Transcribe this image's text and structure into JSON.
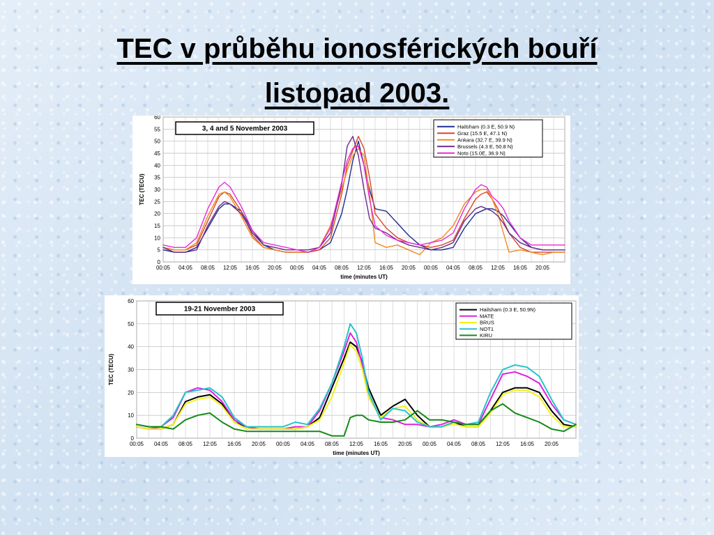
{
  "slide": {
    "title_line1": "TEC v průběhu ionosférických bouří",
    "title_line2": "listopad 2003."
  },
  "chart_data": [
    {
      "type": "line",
      "title": "3, 4 and 5 November 2003",
      "xlabel": "time (minutes UT)",
      "ylabel": "TEC (TECU)",
      "ylim": [
        0,
        60
      ],
      "yticks": [
        0,
        5,
        10,
        15,
        20,
        25,
        30,
        35,
        40,
        45,
        50,
        55,
        60
      ],
      "xlim": [
        0,
        72
      ],
      "xticks": [
        "00:05",
        "04:05",
        "08:05",
        "12:05",
        "16:05",
        "20:05",
        "00:05",
        "04:05",
        "08:05",
        "12:05",
        "16:05",
        "20:05",
        "00:05",
        "04:05",
        "08:05",
        "12:05",
        "16:05",
        "20:05"
      ],
      "grid": true,
      "legend_position": "top-right",
      "x_hours": [
        0,
        2,
        4,
        6,
        8,
        10,
        11,
        12,
        14,
        16,
        18,
        20,
        22,
        24,
        26,
        28,
        30,
        32,
        33,
        34,
        35,
        36,
        37,
        38,
        40,
        42,
        44,
        46,
        48,
        50,
        52,
        54,
        56,
        57,
        58,
        59,
        60,
        61,
        62,
        64,
        66,
        68,
        70,
        72
      ],
      "series": [
        {
          "name": "Hailsham (0.3 E, 50.9 N)",
          "color": "#1c2e8c",
          "values": [
            5,
            4,
            4,
            6,
            14,
            22,
            24,
            24,
            21,
            13,
            7,
            5,
            4,
            4,
            4,
            5,
            8,
            20,
            30,
            42,
            50,
            40,
            30,
            22,
            21,
            16,
            11,
            7,
            5,
            5,
            6,
            14,
            20,
            21,
            22,
            22,
            21,
            19,
            16,
            10,
            6,
            5,
            5,
            5
          ]
        },
        {
          "name": "Graz (15.5 E, 47.1 N)",
          "color": "#d9452b",
          "values": [
            6,
            5,
            5,
            7,
            17,
            27,
            29,
            28,
            21,
            11,
            6,
            5,
            4,
            4,
            4,
            5,
            10,
            28,
            40,
            46,
            52,
            47,
            35,
            20,
            14,
            10,
            8,
            7,
            6,
            7,
            9,
            18,
            26,
            28,
            29,
            26,
            22,
            17,
            12,
            6,
            4,
            4,
            4,
            4
          ]
        },
        {
          "name": "Ankara (32.7 E, 39.9 N)",
          "color": "#f08a1c",
          "values": [
            6,
            5,
            5,
            8,
            19,
            28,
            29,
            27,
            19,
            10,
            6,
            5,
            4,
            4,
            4,
            6,
            15,
            30,
            38,
            44,
            47,
            44,
            28,
            8,
            6,
            7,
            5,
            3,
            8,
            10,
            15,
            24,
            29,
            30,
            30,
            26,
            20,
            12,
            4,
            5,
            4,
            3,
            4,
            4
          ]
        },
        {
          "name": "Brussels (4.3 E, 50.8 N)",
          "color": "#6a2a8c",
          "values": [
            6,
            4,
            4,
            5,
            15,
            23,
            25,
            24,
            20,
            12,
            7,
            6,
            5,
            5,
            5,
            6,
            12,
            32,
            48,
            52,
            44,
            30,
            18,
            14,
            12,
            9,
            7,
            6,
            5,
            6,
            8,
            17,
            22,
            23,
            22,
            21,
            19,
            16,
            12,
            8,
            6,
            5,
            5,
            5
          ]
        },
        {
          "name": "Noto (15.0E, 36.9 N)",
          "color": "#e82ad8",
          "values": [
            7,
            6,
            6,
            10,
            22,
            31,
            33,
            31,
            23,
            13,
            8,
            7,
            6,
            5,
            4,
            6,
            14,
            33,
            42,
            47,
            48,
            40,
            26,
            15,
            11,
            9,
            8,
            7,
            8,
            9,
            12,
            22,
            30,
            32,
            31,
            27,
            25,
            22,
            17,
            10,
            7,
            7,
            7,
            7
          ]
        }
      ]
    },
    {
      "type": "line",
      "title": "19-21 November 2003",
      "xlabel": "time (minutes UT)",
      "ylabel": "TEC (TECU)",
      "ylim": [
        0,
        60
      ],
      "yticks": [
        0,
        10,
        20,
        30,
        40,
        50,
        60
      ],
      "xlim": [
        0,
        72
      ],
      "xticks": [
        "00:05",
        "04:05",
        "08:05",
        "12:05",
        "16:05",
        "20:05",
        "00:05",
        "04:05",
        "08:05",
        "12:05",
        "16:05",
        "20:05",
        "00:05",
        "04:05",
        "08:05",
        "12:05",
        "16:05",
        "20:05"
      ],
      "grid": true,
      "legend_position": "top-right",
      "x_hours": [
        0,
        2,
        4,
        6,
        8,
        10,
        12,
        14,
        16,
        18,
        20,
        22,
        24,
        26,
        28,
        30,
        32,
        34,
        35,
        36,
        37,
        38,
        40,
        42,
        44,
        46,
        48,
        50,
        52,
        54,
        56,
        58,
        60,
        62,
        64,
        66,
        68,
        70,
        72
      ],
      "series": [
        {
          "name": "Hailsham (0.3 E, 50.9N)",
          "color": "#000000",
          "values": [
            5,
            4,
            4,
            6,
            16,
            18,
            19,
            15,
            7,
            5,
            4,
            4,
            4,
            4,
            5,
            9,
            22,
            35,
            42,
            40,
            33,
            22,
            10,
            14,
            17,
            10,
            5,
            5,
            7,
            5,
            5,
            12,
            20,
            22,
            22,
            20,
            12,
            6,
            5
          ]
        },
        {
          "name": "MATE",
          "color": "#e020e0",
          "values": [
            5,
            4,
            5,
            9,
            20,
            22,
            21,
            16,
            8,
            5,
            4,
            4,
            4,
            5,
            5,
            12,
            24,
            38,
            46,
            42,
            32,
            18,
            9,
            8,
            6,
            6,
            5,
            6,
            8,
            6,
            6,
            17,
            28,
            29,
            27,
            24,
            15,
            8,
            6
          ]
        },
        {
          "name": "BRUS",
          "color": "#f2f21a",
          "values": [
            5,
            4,
            4,
            6,
            15,
            17,
            18,
            14,
            7,
            4,
            4,
            4,
            4,
            4,
            5,
            8,
            18,
            33,
            41,
            38,
            30,
            18,
            9,
            13,
            14,
            8,
            5,
            5,
            6,
            5,
            5,
            11,
            19,
            21,
            21,
            18,
            10,
            5,
            5
          ]
        },
        {
          "name": "NOT1",
          "color": "#25c4c8",
          "values": [
            6,
            5,
            5,
            10,
            20,
            21,
            22,
            18,
            9,
            5,
            5,
            5,
            5,
            7,
            6,
            13,
            24,
            40,
            50,
            46,
            35,
            20,
            8,
            13,
            12,
            7,
            5,
            5,
            7,
            6,
            7,
            20,
            30,
            32,
            31,
            27,
            17,
            8,
            6
          ]
        },
        {
          "name": "KIRU",
          "color": "#148a14",
          "values": [
            6,
            5,
            5,
            4,
            8,
            10,
            11,
            7,
            4,
            3,
            3,
            3,
            3,
            3,
            3,
            3,
            1,
            1,
            9,
            10,
            10,
            8,
            7,
            7,
            8,
            12,
            8,
            8,
            7,
            6,
            6,
            12,
            15,
            11,
            9,
            7,
            4,
            3,
            6
          ]
        }
      ]
    }
  ]
}
